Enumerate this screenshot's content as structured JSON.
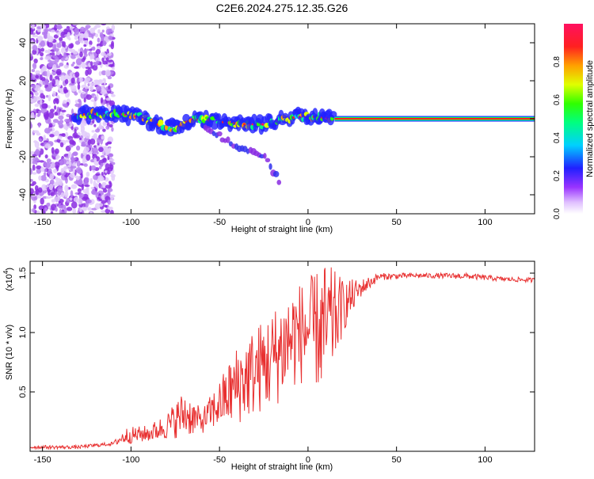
{
  "title": "C2E6.2024.275.12.35.G26",
  "chart_data": [
    {
      "type": "heatmap",
      "xlabel": "Height of straight line (km)",
      "ylabel": "Frequency (Hz)",
      "xlim": [
        -157,
        128
      ],
      "ylim": [
        -50,
        50
      ],
      "xticks": [
        -150,
        -100,
        -50,
        0,
        50,
        100
      ],
      "yticks": [
        -40,
        -20,
        0,
        20,
        40
      ],
      "colorbar": {
        "label": "Normalized spectral amplitude",
        "range": [
          0,
          1
        ],
        "ticks": [
          0.0,
          0.2,
          0.4,
          0.6,
          0.8
        ]
      },
      "features": {
        "noise_region_x": [
          -157,
          -110
        ],
        "main_trace": [
          {
            "x": -132,
            "y": 2
          },
          {
            "x": -110,
            "y": 3
          },
          {
            "x": -95,
            "y": 1
          },
          {
            "x": -85,
            "y": -3
          },
          {
            "x": -75,
            "y": -5
          },
          {
            "x": -65,
            "y": 0
          },
          {
            "x": -55,
            "y": -1
          },
          {
            "x": -45,
            "y": -2
          },
          {
            "x": -35,
            "y": -3
          },
          {
            "x": -25,
            "y": -3
          },
          {
            "x": -15,
            "y": 0
          },
          {
            "x": -5,
            "y": 1
          },
          {
            "x": 5,
            "y": 1
          },
          {
            "x": 15,
            "y": 0
          }
        ],
        "secondary_trace": [
          {
            "x": -58,
            "y": -4
          },
          {
            "x": -48,
            "y": -10
          },
          {
            "x": -38,
            "y": -16
          },
          {
            "x": -25,
            "y": -20
          },
          {
            "x": -18,
            "y": -30
          },
          {
            "x": -16,
            "y": -35
          }
        ],
        "steady_line": {
          "x_start": 15,
          "x_end": 128,
          "y": 0
        }
      }
    },
    {
      "type": "line",
      "xlabel": "Height of straight line (km)",
      "ylabel": "SNR (10 * v/v)",
      "yscale_label": "(x10",
      "yscale_exp": "4",
      "xlim": [
        -157,
        128
      ],
      "ylim": [
        0,
        1.6
      ],
      "xticks": [
        -150,
        -100,
        -50,
        0,
        50,
        100
      ],
      "yticks": [
        0.5,
        1.0,
        1.5
      ],
      "ytick_labels": [
        "0.5",
        "1.0",
        "1.5"
      ],
      "color": "#e83030",
      "envelope": [
        {
          "x": -157,
          "lo": 0.02,
          "hi": 0.05
        },
        {
          "x": -130,
          "lo": 0.02,
          "hi": 0.05
        },
        {
          "x": -110,
          "lo": 0.05,
          "hi": 0.08
        },
        {
          "x": -103,
          "lo": 0.06,
          "hi": 0.2
        },
        {
          "x": -90,
          "lo": 0.08,
          "hi": 0.22
        },
        {
          "x": -80,
          "lo": 0.1,
          "hi": 0.32
        },
        {
          "x": -70,
          "lo": 0.12,
          "hi": 0.52
        },
        {
          "x": -60,
          "lo": 0.15,
          "hi": 0.35
        },
        {
          "x": -50,
          "lo": 0.2,
          "hi": 0.6
        },
        {
          "x": -40,
          "lo": 0.22,
          "hi": 0.9
        },
        {
          "x": -30,
          "lo": 0.3,
          "hi": 1.05
        },
        {
          "x": -20,
          "lo": 0.35,
          "hi": 1.2
        },
        {
          "x": -10,
          "lo": 0.5,
          "hi": 1.4
        },
        {
          "x": 0,
          "lo": 0.6,
          "hi": 1.45
        },
        {
          "x": 10,
          "lo": 0.45,
          "hi": 1.6
        },
        {
          "x": 20,
          "lo": 1.0,
          "hi": 1.45
        },
        {
          "x": 30,
          "lo": 1.3,
          "hi": 1.45
        },
        {
          "x": 40,
          "lo": 1.44,
          "hi": 1.5
        },
        {
          "x": 60,
          "lo": 1.46,
          "hi": 1.5
        },
        {
          "x": 90,
          "lo": 1.45,
          "hi": 1.5
        },
        {
          "x": 110,
          "lo": 1.43,
          "hi": 1.47
        },
        {
          "x": 128,
          "lo": 1.42,
          "hi": 1.46
        }
      ]
    }
  ]
}
